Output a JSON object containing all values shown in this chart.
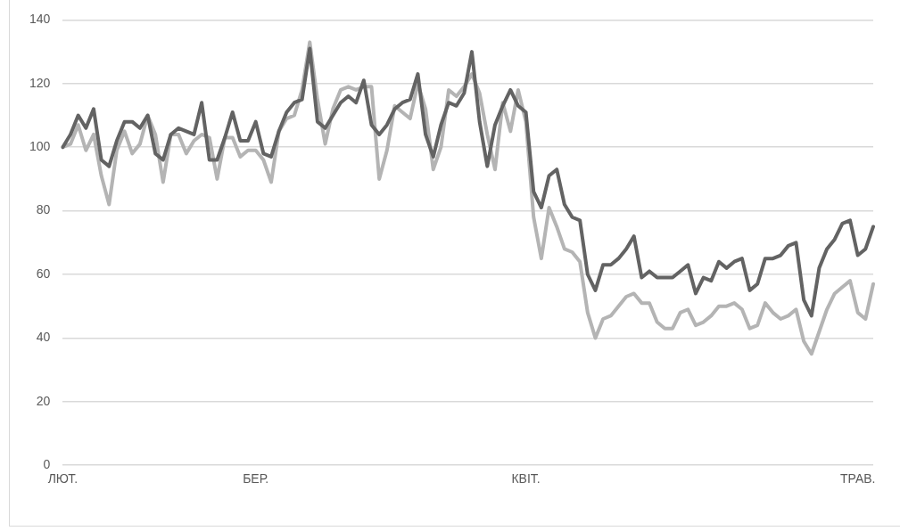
{
  "chart_data": {
    "type": "line",
    "categories": [
      "ЛЮТ.",
      null,
      null,
      null,
      null,
      null,
      null,
      null,
      null,
      null,
      null,
      null,
      null,
      null,
      null,
      null,
      null,
      null,
      null,
      null,
      null,
      null,
      null,
      null,
      null,
      "БЕР.",
      null,
      null,
      null,
      null,
      null,
      null,
      null,
      null,
      null,
      null,
      null,
      null,
      null,
      null,
      null,
      null,
      null,
      null,
      null,
      null,
      null,
      null,
      null,
      null,
      null,
      null,
      null,
      null,
      null,
      null,
      null,
      null,
      null,
      null,
      "КВІТ.",
      null,
      null,
      null,
      null,
      null,
      null,
      null,
      null,
      null,
      null,
      null,
      null,
      null,
      null,
      null,
      null,
      null,
      null,
      null,
      null,
      null,
      null,
      null,
      null,
      null,
      null,
      null,
      null,
      null,
      null,
      null,
      null,
      null,
      null,
      null,
      null,
      null,
      null,
      null,
      null,
      null,
      null,
      "ТРАВ.",
      null,
      null
    ],
    "series": [
      {
        "color": "#636363",
        "values": [
          100,
          104,
          110,
          106,
          112,
          96,
          94,
          102,
          108,
          108,
          106,
          110,
          98,
          96,
          104,
          106,
          105,
          104,
          114,
          96,
          96,
          103,
          111,
          102,
          102,
          108,
          98,
          97,
          105,
          111,
          114,
          115,
          131,
          108,
          106,
          110,
          114,
          116,
          114,
          121,
          107,
          104,
          107,
          112,
          114,
          115,
          123,
          104,
          97,
          107,
          114,
          113,
          117,
          130,
          108,
          94,
          107,
          113,
          118,
          113,
          111,
          86,
          81,
          91,
          93,
          82,
          78,
          77,
          60,
          55,
          63,
          63,
          65,
          68,
          72,
          59,
          61,
          59,
          59,
          59,
          61,
          63,
          54,
          59,
          58,
          64,
          62,
          64,
          65,
          55,
          57,
          65,
          65,
          66,
          69,
          70,
          52,
          47,
          62,
          68,
          71,
          76,
          77,
          66,
          68,
          75
        ]
      },
      {
        "color": "#b4b4b4",
        "values": [
          100,
          101,
          107,
          99,
          104,
          91,
          82,
          99,
          105,
          98,
          101,
          110,
          104,
          89,
          104,
          104,
          98,
          102,
          104,
          103,
          90,
          103,
          103,
          97,
          99,
          99,
          96,
          89,
          105,
          109,
          110,
          118,
          133,
          115,
          101,
          112,
          118,
          119,
          118,
          119,
          119,
          90,
          99,
          113,
          111,
          109,
          120,
          112,
          93,
          100,
          118,
          116,
          119,
          123,
          117,
          104,
          93,
          114,
          105,
          118,
          108,
          78,
          65,
          81,
          75,
          68,
          67,
          64,
          48,
          40,
          46,
          47,
          50,
          53,
          54,
          51,
          51,
          45,
          43,
          43,
          48,
          49,
          44,
          45,
          47,
          50,
          50,
          51,
          49,
          43,
          44,
          51,
          48,
          46,
          47,
          49,
          39,
          35,
          42,
          49,
          54,
          56,
          58,
          48,
          46,
          57
        ]
      }
    ],
    "ylim": [
      0,
      140
    ],
    "yticks": [
      0,
      20,
      40,
      60,
      80,
      100,
      120,
      140
    ],
    "grid": "y",
    "legend": false,
    "marker": "none",
    "line_style": "solid"
  }
}
